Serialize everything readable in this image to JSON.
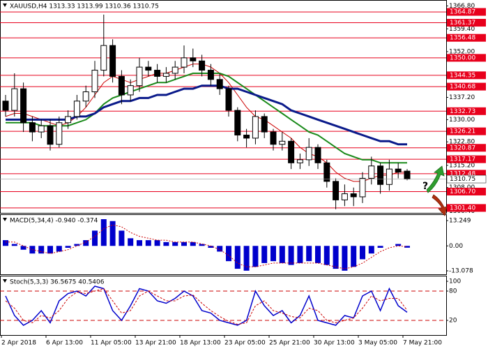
{
  "chart_data": [
    {
      "type": "candlestick",
      "title": "XAUUSD,H4  1313.33 1313.99 1310.36 1310.75",
      "categories": [
        "2 Apr 2018",
        null,
        null,
        null,
        null,
        "6 Apr 13:00",
        null,
        null,
        null,
        null,
        "11 Apr 05:00",
        null,
        null,
        null,
        null,
        "13 Apr 21:00",
        null,
        null,
        null,
        null,
        "18 Apr 13:00",
        null,
        null,
        null,
        null,
        "23 Apr 05:00",
        null,
        null,
        null,
        null,
        "25 Apr 21:00",
        null,
        null,
        null,
        null,
        "30 Apr 13:00",
        null,
        null,
        null,
        null,
        "3 May 05:00",
        null,
        null,
        null,
        null,
        "7 May 21:00"
      ],
      "open": [
        1336,
        1333,
        1340,
        1329,
        1326,
        1328,
        1322,
        1329,
        1331,
        1336,
        1339,
        1346,
        1354,
        1344,
        1338,
        1341,
        1347,
        1346,
        1344,
        1345,
        1347,
        1350,
        1349,
        1346,
        1343,
        1340,
        1333,
        1325,
        1324,
        1331,
        1326,
        1322,
        1323,
        1316,
        1317,
        1321,
        1316,
        1310,
        1304,
        1306,
        1305,
        1311,
        1315,
        1309,
        1314,
        1313.33
      ],
      "high": [
        1338,
        1345,
        1342,
        1331,
        1330,
        1330,
        1331,
        1333,
        1338,
        1341,
        1349,
        1364,
        1356,
        1346,
        1343,
        1350,
        1349,
        1348,
        1347,
        1349,
        1354,
        1353,
        1351,
        1348,
        1345,
        1341,
        1334,
        1327,
        1333,
        1332,
        1327,
        1326,
        1324,
        1319,
        1324,
        1322,
        1317,
        1311,
        1309,
        1308,
        1313,
        1318,
        1316,
        1317,
        1316,
        1313.99
      ],
      "low": [
        1331,
        1331,
        1326,
        1323,
        1324,
        1320,
        1321,
        1327,
        1330,
        1334,
        1337,
        1344,
        1342,
        1335,
        1336,
        1339,
        1344,
        1342,
        1342,
        1343,
        1345,
        1347,
        1344,
        1341,
        1338,
        1331,
        1323,
        1321,
        1322,
        1324,
        1320,
        1320,
        1314,
        1314,
        1315,
        1314,
        1308,
        1301,
        1302,
        1302,
        1303,
        1309,
        1306,
        1307,
        1311,
        1310.36
      ],
      "close": [
        1333,
        1340,
        1329,
        1326,
        1328,
        1322,
        1329,
        1331,
        1336,
        1339,
        1346,
        1354,
        1344,
        1338,
        1341,
        1347,
        1346,
        1344,
        1345,
        1347,
        1350,
        1349,
        1346,
        1343,
        1340,
        1333,
        1325,
        1324,
        1331,
        1326,
        1322,
        1323,
        1316,
        1317,
        1321,
        1316,
        1310,
        1304,
        1306,
        1305,
        1311,
        1315,
        1309,
        1314,
        1313,
        1310.75
      ],
      "series": [
        {
          "color": "#cc0000",
          "width": 1,
          "values": [
            1331,
            1332,
            1332,
            1331,
            1330,
            1329,
            1328,
            1329,
            1331,
            1334,
            1338,
            1342,
            1344,
            1343,
            1342,
            1343,
            1344,
            1345,
            1345,
            1346,
            1347,
            1348,
            1348,
            1347,
            1345,
            1342,
            1338,
            1334,
            1331,
            1330,
            1328,
            1326,
            1324,
            1321,
            1319,
            1318,
            1316,
            1313,
            1311,
            1310,
            1310,
            1311,
            1312,
            1312,
            1313,
            1313
          ]
        },
        {
          "color": "#1a8a1a",
          "width": 2,
          "values": [
            1329,
            1329,
            1329,
            1329,
            1328,
            1328,
            1328,
            1328,
            1329,
            1330,
            1332,
            1335,
            1337,
            1338,
            1339,
            1340,
            1341,
            1342,
            1342,
            1343,
            1344,
            1345,
            1345,
            1345,
            1345,
            1344,
            1342,
            1340,
            1338,
            1336,
            1334,
            1332,
            1330,
            1328,
            1326,
            1325,
            1323,
            1321,
            1319,
            1318,
            1317,
            1317,
            1316,
            1316,
            1316,
            1316
          ]
        },
        {
          "color": "#0a1a8a",
          "width": 3,
          "values": [
            1330,
            1330,
            1330,
            1330,
            1330,
            1330,
            1330,
            1330,
            1331,
            1331,
            1332,
            1334,
            1335,
            1336,
            1336,
            1337,
            1337,
            1338,
            1338,
            1339,
            1340,
            1340,
            1341,
            1341,
            1341,
            1340,
            1340,
            1339,
            1338,
            1337,
            1336,
            1335,
            1333,
            1332,
            1331,
            1330,
            1329,
            1328,
            1327,
            1326,
            1325,
            1324,
            1323,
            1323,
            1322,
            1322
          ]
        }
      ],
      "levels": {
        "color": "#e8001c",
        "values": [
          1364.87,
          1361.37,
          1356.48,
          1350,
          1344.35,
          1340.68,
          1332.73,
          1326.21,
          1320.87,
          1317.17,
          1312.48,
          1306.7,
          1301.4
        ],
        "value_labels": [
          "1364.87",
          "1361.37",
          "1356.48",
          "1350.00",
          "1344.35",
          "1340.68",
          "1332.73",
          "1326.21",
          "1320.87",
          "1317.17",
          "1312.48",
          "1306.70",
          "1301.40"
        ]
      },
      "last_price": 1310.75,
      "ylim": [
        1299.8,
        1368.5
      ],
      "yticks": [
        {
          "value": 1366.8,
          "label": "1366.80"
        },
        {
          "value": 1359.4,
          "label": "1359.40"
        },
        {
          "value": 1352,
          "label": "1352.00"
        },
        {
          "value": 1337.2,
          "label": "1337.20"
        },
        {
          "value": 1330,
          "label": "1330.00"
        },
        {
          "value": 1322.8,
          "label": "1322.80"
        },
        {
          "value": 1315.2,
          "label": "1315.20"
        },
        {
          "value": 1308,
          "label": "1308.00"
        },
        {
          "value": 1300.4,
          "label": "1300.40"
        }
      ]
    },
    {
      "type": "macd",
      "title": "MACD(5,34,4) -0.940 -0.374",
      "series": [
        {
          "kind": "histogram",
          "color": "#0000cc",
          "values": [
            3,
            1,
            -2,
            -4,
            -4,
            -4,
            -3,
            -1,
            1,
            3,
            8,
            14,
            13,
            8,
            4,
            3,
            3,
            3,
            2,
            2,
            2,
            2,
            1,
            -1,
            -3,
            -8,
            -12,
            -13,
            -11,
            -9,
            -8,
            -9,
            -10,
            -9,
            -8,
            -9,
            -10,
            -12,
            -13,
            -11,
            -7,
            -4,
            -1,
            0,
            1,
            -0.94
          ]
        },
        {
          "kind": "dotted-line",
          "color": "#cc0000",
          "values": [
            2,
            2,
            0,
            -2,
            -3,
            -4,
            -3,
            -2,
            0,
            2,
            5,
            9,
            11,
            10,
            7,
            5,
            4,
            3,
            3,
            2,
            2,
            2,
            1,
            0,
            -2,
            -5,
            -9,
            -11,
            -11,
            -10,
            -9,
            -9,
            -9,
            -9,
            -9,
            -9,
            -10,
            -11,
            -12,
            -11,
            -9,
            -6,
            -3,
            -1,
            0,
            -0.374
          ]
        }
      ],
      "ylim": [
        -14.9,
        16.2
      ],
      "yticks": [
        13.249,
        {
          "value": 0,
          "label": "0.00"
        },
        -13.078
      ]
    },
    {
      "type": "stochastic",
      "title": "Stoch(5,3,3) 36.5675 40.5406",
      "series": [
        {
          "kind": "line",
          "color": "#0000cc",
          "values": [
            70,
            30,
            10,
            20,
            40,
            15,
            60,
            75,
            80,
            70,
            90,
            85,
            40,
            20,
            50,
            85,
            80,
            60,
            55,
            65,
            80,
            70,
            40,
            35,
            20,
            15,
            10,
            20,
            80,
            50,
            30,
            40,
            15,
            30,
            70,
            20,
            15,
            10,
            30,
            25,
            70,
            80,
            40,
            85,
            50,
            36.5675
          ]
        },
        {
          "kind": "dashed-line",
          "color": "#cc0000",
          "values": [
            60,
            45,
            20,
            15,
            30,
            25,
            40,
            65,
            78,
            75,
            80,
            85,
            60,
            35,
            40,
            70,
            80,
            70,
            60,
            60,
            70,
            72,
            55,
            40,
            28,
            18,
            12,
            15,
            50,
            60,
            40,
            35,
            28,
            25,
            45,
            40,
            20,
            15,
            20,
            25,
            45,
            70,
            60,
            65,
            65,
            40.5406
          ]
        }
      ],
      "levels": [
        80,
        20
      ],
      "level_color": "#cc0000",
      "ylim": [
        -10,
        110
      ],
      "yticks": [
        100,
        80,
        20
      ]
    }
  ]
}
